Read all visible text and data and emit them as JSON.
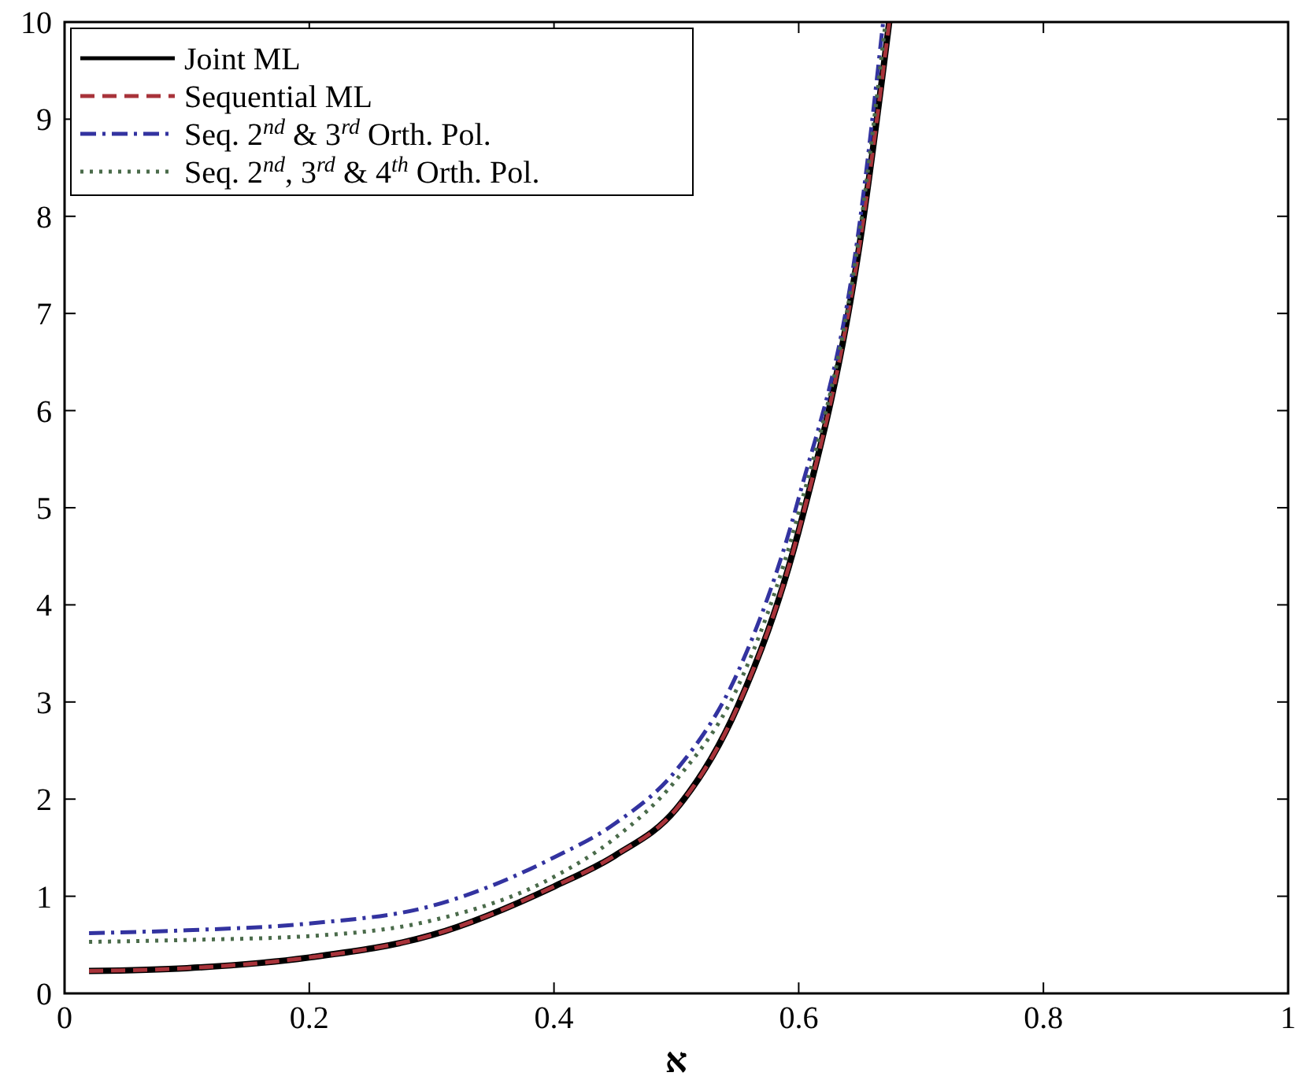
{
  "chart_data": {
    "type": "line",
    "xlabel": "א",
    "xlim": [
      0,
      1
    ],
    "ylim": [
      0,
      10
    ],
    "xticks": [
      0,
      0.2,
      0.4,
      0.6,
      0.8,
      1
    ],
    "yticks": [
      0,
      1,
      2,
      3,
      4,
      5,
      6,
      7,
      8,
      9,
      10
    ],
    "grid": false,
    "legend": "top left",
    "series": [
      {
        "name": "Joint ML",
        "color": "#000000",
        "line_style": "solid",
        "x": [
          0.02,
          0.1,
          0.2,
          0.3,
          0.4,
          0.45,
          0.5,
          0.55,
          0.6,
          0.65,
          0.674
        ],
        "values": [
          0.23,
          0.26,
          0.37,
          0.6,
          1.1,
          1.42,
          1.9,
          2.95,
          4.76,
          7.73,
          10
        ]
      },
      {
        "name": "Sequential ML",
        "color": "#a8333a",
        "line_style": "dashed",
        "x": [
          0.02,
          0.1,
          0.2,
          0.3,
          0.4,
          0.45,
          0.5,
          0.55,
          0.6,
          0.65,
          0.674
        ],
        "values": [
          0.23,
          0.26,
          0.37,
          0.6,
          1.1,
          1.42,
          1.9,
          2.95,
          4.76,
          7.73,
          10
        ]
      },
      {
        "name": "Seq. 2$^{nd}$ & 3$^{rd}$ Orth. Pol.",
        "color": "#3333a0",
        "line_style": "dashdot",
        "x": [
          0.02,
          0.1,
          0.2,
          0.3,
          0.4,
          0.45,
          0.5,
          0.55,
          0.6,
          0.65,
          0.669
        ],
        "values": [
          0.62,
          0.65,
          0.72,
          0.9,
          1.4,
          1.75,
          2.3,
          3.3,
          5.1,
          7.95,
          10
        ]
      },
      {
        "name": "Seq. 2$^{nd}$, 3$^{rd}$ & 4$^{th}$ Orth. Pol.",
        "color": "#4a6b4a",
        "line_style": "dotted",
        "x": [
          0.02,
          0.1,
          0.2,
          0.3,
          0.4,
          0.45,
          0.5,
          0.55,
          0.6,
          0.65,
          0.671
        ],
        "values": [
          0.53,
          0.55,
          0.59,
          0.75,
          1.2,
          1.6,
          2.2,
          3.15,
          4.95,
          7.85,
          10
        ]
      }
    ]
  }
}
